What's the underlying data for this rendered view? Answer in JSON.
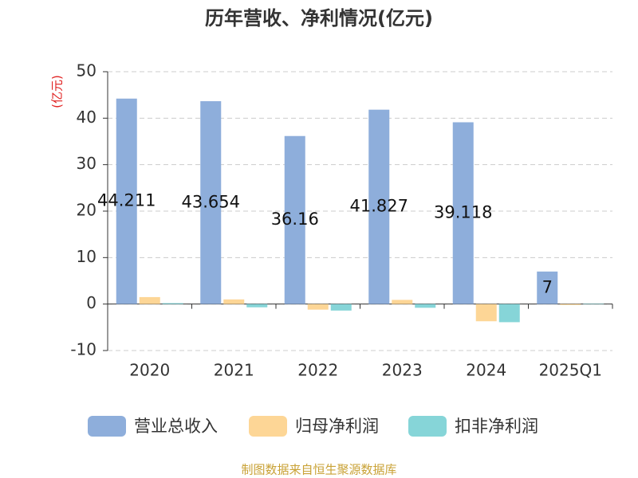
{
  "chart_data": {
    "type": "bar",
    "title": "历年营收、净利情况(亿元)",
    "y_label": "(亿元)",
    "categories": [
      "2020",
      "2021",
      "2022",
      "2023",
      "2024",
      "2025Q1"
    ],
    "series": [
      {
        "name": "营业总收入",
        "color": "#8eaedb",
        "values": [
          44.211,
          43.654,
          36.16,
          41.827,
          39.118,
          7
        ],
        "data_labels": true
      },
      {
        "name": "归母净利润",
        "color": "#fdd696",
        "values": [
          1.5,
          1.0,
          -1.2,
          0.9,
          -3.7,
          -0.2
        ],
        "data_labels": false
      },
      {
        "name": "扣非净利润",
        "color": "#86d5d8",
        "values": [
          0.2,
          -0.7,
          -1.4,
          -0.8,
          -3.9,
          0.1
        ],
        "data_labels": false
      }
    ],
    "ylim": [
      -10,
      50
    ],
    "yticks": [
      -10,
      0,
      10,
      20,
      30,
      40,
      50
    ],
    "grid": true,
    "source": "制图数据来自恒生聚源数据库"
  }
}
